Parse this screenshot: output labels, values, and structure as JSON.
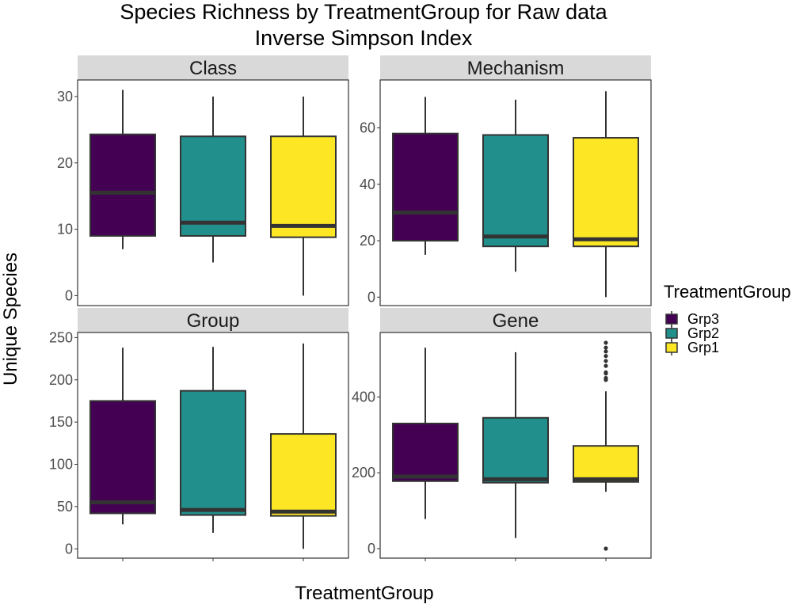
{
  "chart_data": {
    "type": "box",
    "title": "Species Richness by TreatmentGroup for Raw data",
    "subtitle": "Inverse Simpson Index",
    "xlabel": "TreatmentGroup",
    "ylabel": "Unique Species",
    "legend": {
      "title": "TreatmentGroup",
      "position": "right",
      "entries": [
        {
          "name": "Grp3",
          "color": "#440154"
        },
        {
          "name": "Grp2",
          "color": "#21908C"
        },
        {
          "name": "Grp1",
          "color": "#FDE725"
        }
      ]
    },
    "categories": [
      "Grp3",
      "Grp2",
      "Grp1"
    ],
    "grid": false,
    "panels": [
      {
        "name": "Class",
        "ylim": [
          -1.5,
          32.5
        ],
        "yticks": [
          0,
          10,
          20,
          30
        ],
        "boxes": [
          {
            "group": "Grp3",
            "min": 7,
            "q1": 9,
            "median": 15.5,
            "q3": 24.3,
            "max": 31,
            "outliers": []
          },
          {
            "group": "Grp2",
            "min": 5,
            "q1": 9,
            "median": 11,
            "q3": 24,
            "max": 30,
            "outliers": []
          },
          {
            "group": "Grp1",
            "min": 0,
            "q1": 8.8,
            "median": 10.5,
            "q3": 24,
            "max": 30,
            "outliers": []
          }
        ]
      },
      {
        "name": "Mechanism",
        "ylim": [
          -3,
          77
        ],
        "yticks": [
          0,
          20,
          40,
          60
        ],
        "boxes": [
          {
            "group": "Grp3",
            "min": 15,
            "q1": 20,
            "median": 30,
            "q3": 58,
            "max": 71,
            "outliers": []
          },
          {
            "group": "Grp2",
            "min": 9,
            "q1": 18,
            "median": 21.5,
            "q3": 57.5,
            "max": 70,
            "outliers": []
          },
          {
            "group": "Grp1",
            "min": 0,
            "q1": 18,
            "median": 20.5,
            "q3": 56.5,
            "max": 73,
            "outliers": []
          }
        ]
      },
      {
        "name": "Group",
        "ylim": [
          -11,
          256
        ],
        "yticks": [
          0,
          50,
          100,
          150,
          200,
          250
        ],
        "boxes": [
          {
            "group": "Grp3",
            "min": 29,
            "q1": 42,
            "median": 55,
            "q3": 175,
            "max": 238,
            "outliers": []
          },
          {
            "group": "Grp2",
            "min": 19,
            "q1": 40,
            "median": 46,
            "q3": 187,
            "max": 239,
            "outliers": []
          },
          {
            "group": "Grp1",
            "min": 0,
            "q1": 39,
            "median": 44,
            "q3": 136,
            "max": 243,
            "outliers": []
          }
        ]
      },
      {
        "name": "Gene",
        "ylim": [
          -25,
          570
        ],
        "yticks": [
          0,
          200,
          400
        ],
        "boxes": [
          {
            "group": "Grp3",
            "min": 78,
            "q1": 178,
            "median": 190,
            "q3": 330,
            "max": 530,
            "outliers": []
          },
          {
            "group": "Grp2",
            "min": 28,
            "q1": 174,
            "median": 183,
            "q3": 345,
            "max": 518,
            "outliers": []
          },
          {
            "group": "Grp1",
            "min": 150,
            "q1": 176,
            "median": 183,
            "q3": 271,
            "max": 415,
            "outliers": [
              0,
              445,
              450,
              462,
              465,
              482,
              495,
              508,
              520,
              530,
              543
            ]
          }
        ]
      }
    ]
  }
}
